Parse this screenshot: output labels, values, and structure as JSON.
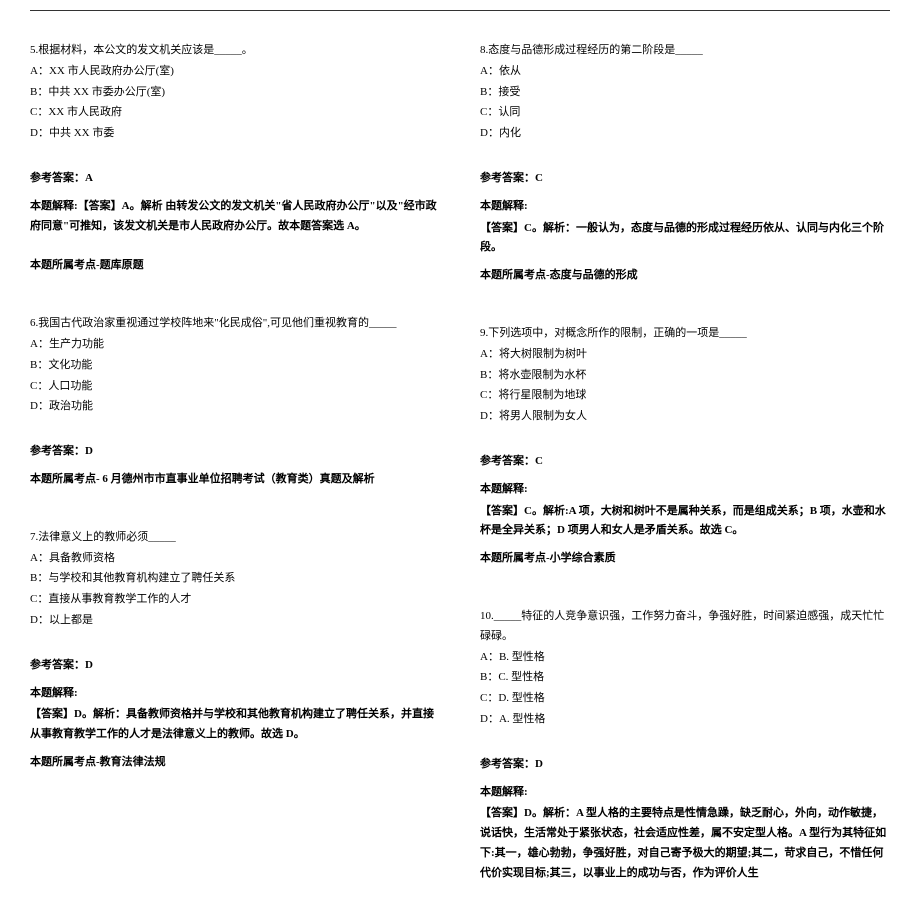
{
  "left": {
    "q5": {
      "stem": "5.根据材料，本公文的发文机关应该是_____。",
      "opts": [
        "A：XX 市人民政府办公厅(室)",
        "B：中共 XX 市委办公厅(室)",
        "C：XX 市人民政府",
        "D：中共 XX 市委"
      ],
      "answer_label": "参考答案：A",
      "explain_label": "本题解释:",
      "explain": "【答案】A。解析  由转发公文的发文机关\"省人民政府办公厅\"以及\"经市政府同意\"可推知，该发文机关是市人民政府办公厅。故本题答案选 A。",
      "topic": "本题所属考点-题库原题"
    },
    "q6": {
      "stem": "6.我国古代政治家重视通过学校阵地来\"化民成俗\",可见他们重视教育的_____",
      "opts": [
        "A：生产力功能",
        "B：文化功能",
        "C：人口功能",
        "D：政治功能"
      ],
      "answer_label": "参考答案：D",
      "topic": "本题所属考点-  6 月德州市市直事业单位招聘考试（教育类）真题及解析"
    },
    "q7": {
      "stem": "7.法律意义上的教师必须_____",
      "opts": [
        "A：具备教师资格",
        "B：与学校和其他教育机构建立了聘任关系",
        "C：直接从事教育教学工作的人才",
        "D：以上都是"
      ],
      "answer_label": "参考答案：D",
      "explain_label": "本题解释:",
      "explain": "【答案】D。解析：具备教师资格并与学校和其他教育机构建立了聘任关系，并直接从事教育教学工作的人才是法律意义上的教师。故选 D。",
      "topic": "本题所属考点-教育法律法规"
    }
  },
  "right": {
    "q8": {
      "stem": "8.态度与品德形成过程经历的第二阶段是_____",
      "opts": [
        "A：依从",
        "B：接受",
        "C：认同",
        "D：内化"
      ],
      "answer_label": "参考答案：C",
      "explain_label": "本题解释:",
      "explain": "【答案】C。解析：一般认为，态度与品德的形成过程经历依从、认同与内化三个阶段。",
      "topic": "本题所属考点-态度与品德的形成"
    },
    "q9": {
      "stem": "9.下列选项中，对概念所作的限制，正确的一项是_____",
      "opts": [
        "A：将大树限制为树叶",
        "B：将水壶限制为水杯",
        "C：将行星限制为地球",
        "D：将男人限制为女人"
      ],
      "answer_label": "参考答案：C",
      "explain_label": "本题解释:",
      "explain": "【答案】C。解析:A 项，大树和树叶不是属种关系，而是组成关系；B 项，水壶和水杯是全异关系；D 项男人和女人是矛盾关系。故选 C。",
      "topic": "本题所属考点-小学综合素质"
    },
    "q10": {
      "stem": "10._____特征的人竞争意识强，工作努力奋斗，争强好胜，时间紧迫感强，成天忙忙碌碌。",
      "opts": [
        "A：B. 型性格",
        "B：C. 型性格",
        "C：D. 型性格",
        "D：A. 型性格"
      ],
      "answer_label": "参考答案：D",
      "explain_label": "本题解释:",
      "explain": "【答案】D。解析：A 型人格的主要特点是性情急躁，缺乏耐心，外向，动作敏捷，说话快，生活常处于紧张状态，社会适应性差，属不安定型人格。A 型行为其特征如下:其一，雄心勃勃，争强好胜，对自己寄予极大的期望;其二，苛求自己，不惜任何代价实现目标;其三，以事业上的成功与否，作为评价人生"
    }
  }
}
